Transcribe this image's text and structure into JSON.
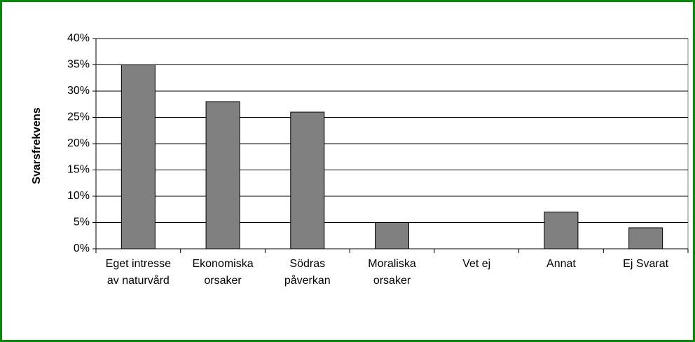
{
  "chart_data": {
    "type": "bar",
    "y_label": "Svarsfrekvens",
    "categories": [
      "Eget intresse av naturvård",
      "Ekonomiska orsaker",
      "Södras påverkan",
      "Moraliska orsaker",
      "Vet ej",
      "Annat",
      "Ej Svarat"
    ],
    "values": [
      35,
      28,
      26,
      5,
      0,
      7,
      4
    ],
    "color": "#808080",
    "ylim": [
      0,
      40
    ],
    "yticks": [
      {
        "value": 0,
        "label": "0%"
      },
      {
        "value": 5,
        "label": "5%"
      },
      {
        "value": 10,
        "label": "10%"
      },
      {
        "value": 15,
        "label": "15%"
      },
      {
        "value": 20,
        "label": "20%"
      },
      {
        "value": 25,
        "label": "25%"
      },
      {
        "value": 30,
        "label": "30%"
      },
      {
        "value": 35,
        "label": "35%"
      },
      {
        "value": 40,
        "label": "40%"
      }
    ],
    "grid": true
  }
}
